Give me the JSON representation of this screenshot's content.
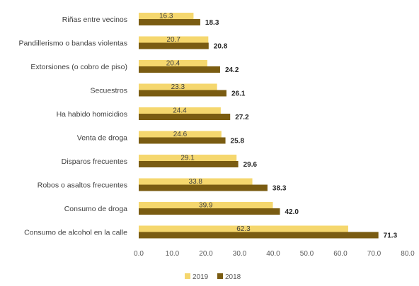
{
  "chart_data": {
    "type": "bar",
    "orientation": "horizontal",
    "categories": [
      "Riñas entre vecinos",
      "Pandillerismo o bandas violentas",
      "Extorsiones (o cobro de piso)",
      "Secuestros",
      "Ha habido homicidios",
      "Venta de droga",
      "Disparos frecuentes",
      "Robos o asaltos frecuentes",
      "Consumo de droga",
      "Consumo de alcohol en la calle"
    ],
    "series": [
      {
        "name": "2019",
        "color": "#f5d76e",
        "values": [
          16.3,
          20.7,
          20.4,
          23.3,
          24.4,
          24.6,
          29.1,
          33.8,
          39.9,
          62.3
        ]
      },
      {
        "name": "2018",
        "color": "#7a5c12",
        "values": [
          18.3,
          20.8,
          24.2,
          26.1,
          27.2,
          25.8,
          29.6,
          38.3,
          42.0,
          71.3
        ]
      }
    ],
    "xlim": [
      0,
      80
    ],
    "xticks": [
      "0.0",
      "10.0",
      "20.0",
      "30.0",
      "40.0",
      "50.0",
      "60.0",
      "70.0",
      "80.0"
    ],
    "grid": false,
    "legend": "bottom"
  }
}
